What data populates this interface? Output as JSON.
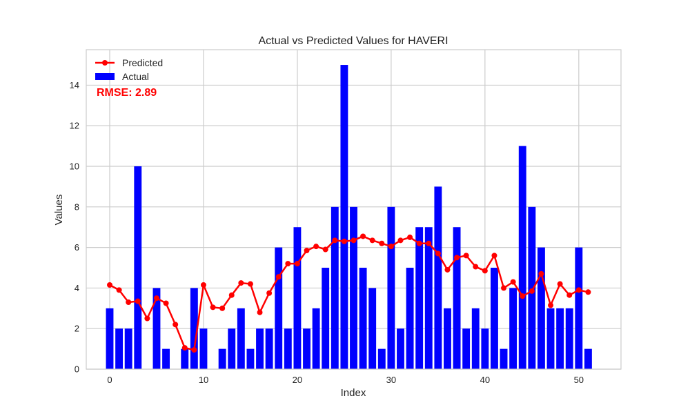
{
  "chart_data": {
    "type": "bar",
    "title": "Actual vs Predicted Values for HAVERI",
    "xlabel": "Index",
    "ylabel": "Values",
    "xlim": [
      -2.5,
      54.5
    ],
    "ylim": [
      0,
      15.75
    ],
    "x_ticks": [
      0,
      10,
      20,
      30,
      40,
      50
    ],
    "y_ticks": [
      0,
      2,
      4,
      6,
      8,
      10,
      12,
      14
    ],
    "grid": true,
    "legend_position": "top-left",
    "annotation": "RMSE: 2.89",
    "colors": {
      "actual": "#0000ff",
      "predicted": "#ff0000",
      "annotation": "#ff0000",
      "grid": "#cccccc"
    },
    "series": [
      {
        "name": "Actual",
        "kind": "bar",
        "x": [
          0,
          1,
          2,
          3,
          4,
          5,
          6,
          7,
          8,
          9,
          10,
          11,
          12,
          13,
          14,
          15,
          16,
          17,
          18,
          19,
          20,
          21,
          22,
          23,
          24,
          25,
          26,
          27,
          28,
          29,
          30,
          31,
          32,
          33,
          34,
          35,
          36,
          37,
          38,
          39,
          40,
          41,
          42,
          43,
          44,
          45,
          46,
          47,
          48,
          49,
          50,
          51
        ],
        "values": [
          3,
          2,
          2,
          10,
          0,
          4,
          1,
          0,
          1,
          4,
          2,
          0,
          1,
          2,
          3,
          1,
          2,
          2,
          6,
          2,
          7,
          2,
          3,
          5,
          8,
          15,
          8,
          5,
          4,
          1,
          8,
          2,
          5,
          7,
          7,
          9,
          3,
          7,
          2,
          3,
          2,
          5,
          1,
          4,
          11,
          8,
          6,
          3,
          3,
          3,
          6,
          1
        ]
      },
      {
        "name": "Predicted",
        "kind": "line",
        "x": [
          0,
          1,
          2,
          3,
          4,
          5,
          6,
          7,
          8,
          9,
          10,
          11,
          12,
          13,
          14,
          15,
          16,
          17,
          18,
          19,
          20,
          21,
          22,
          23,
          24,
          25,
          26,
          27,
          28,
          29,
          30,
          31,
          32,
          33,
          34,
          35,
          36,
          37,
          38,
          39,
          40,
          41,
          42,
          43,
          44,
          45,
          46,
          47,
          48,
          49,
          50,
          51
        ],
        "values": [
          4.15,
          3.9,
          3.3,
          3.35,
          2.5,
          3.5,
          3.25,
          2.2,
          1.05,
          0.95,
          4.15,
          3.05,
          3.0,
          3.65,
          4.25,
          4.2,
          2.8,
          3.75,
          4.55,
          5.2,
          5.2,
          5.85,
          6.05,
          5.9,
          6.35,
          6.3,
          6.35,
          6.55,
          6.35,
          6.2,
          6.05,
          6.35,
          6.5,
          6.2,
          6.2,
          5.7,
          4.9,
          5.5,
          5.6,
          5.05,
          4.85,
          5.6,
          4.0,
          4.3,
          3.6,
          3.85,
          4.7,
          3.15,
          4.2,
          3.65,
          3.9,
          3.8
        ]
      }
    ]
  }
}
